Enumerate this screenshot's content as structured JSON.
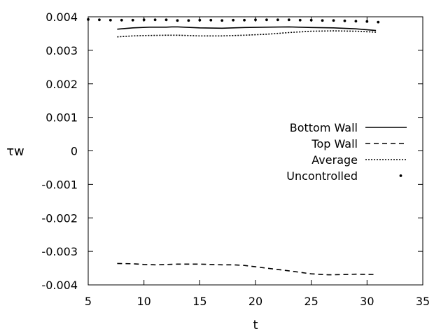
{
  "chart_data": {
    "type": "line",
    "xlabel": "t",
    "ylabel": "τw",
    "xlim": [
      5,
      35
    ],
    "ylim": [
      -0.004,
      0.004
    ],
    "x_ticks": [
      "5",
      "10",
      "15",
      "20",
      "25",
      "30",
      "35"
    ],
    "y_ticks": [
      "-0.004",
      "-0.003",
      "-0.002",
      "-0.001",
      "0",
      "0.001",
      "0.002",
      "0.003",
      "0.004"
    ],
    "legend_position": "right",
    "series": [
      {
        "name": "Bottom Wall",
        "style": "solid",
        "x": [
          7.6,
          9,
          10.5,
          12,
          12.5,
          13,
          15,
          17,
          19,
          21,
          23,
          25,
          27,
          29,
          30.8
        ],
        "y": [
          0.00363,
          0.00367,
          0.00369,
          0.00369,
          0.0037,
          0.0037,
          0.00367,
          0.00366,
          0.00368,
          0.00369,
          0.0037,
          0.00368,
          0.00367,
          0.00364,
          0.00359
        ]
      },
      {
        "name": "Top Wall",
        "style": "dashed",
        "x": [
          7.6,
          9,
          10,
          11,
          13,
          15,
          17,
          18,
          19,
          20,
          21,
          23,
          25,
          26.5,
          28,
          29,
          30.8
        ],
        "y": [
          -0.00336,
          -0.00337,
          -0.00339,
          -0.0034,
          -0.00338,
          -0.00338,
          -0.0034,
          -0.0034,
          -0.00342,
          -0.00346,
          -0.0035,
          -0.00358,
          -0.00367,
          -0.0037,
          -0.00369,
          -0.00368,
          -0.00369
        ]
      },
      {
        "name": "Average",
        "style": "dotted",
        "x": [
          7.6,
          9,
          10,
          12,
          13,
          15,
          17,
          19,
          21,
          23,
          25,
          27,
          29,
          30.8
        ],
        "y": [
          0.0034,
          0.00343,
          0.00344,
          0.00345,
          0.00345,
          0.00343,
          0.00343,
          0.00345,
          0.00348,
          0.00353,
          0.00357,
          0.00358,
          0.00357,
          0.00354
        ]
      },
      {
        "name": "Uncontrolled",
        "style": "points",
        "x": [
          5,
          6,
          7,
          8,
          9,
          10,
          11,
          12,
          13,
          14,
          15,
          16,
          17,
          18,
          19,
          20,
          21,
          22,
          23,
          24,
          25,
          26,
          27,
          28,
          29,
          30,
          31
        ],
        "y": [
          0.00392,
          0.00391,
          0.0039,
          0.0039,
          0.0039,
          0.00391,
          0.00391,
          0.00391,
          0.00389,
          0.00389,
          0.0039,
          0.0039,
          0.00389,
          0.0039,
          0.0039,
          0.00391,
          0.00391,
          0.00391,
          0.00391,
          0.0039,
          0.0039,
          0.00389,
          0.00389,
          0.00388,
          0.00387,
          0.00386,
          0.00384
        ]
      }
    ]
  }
}
